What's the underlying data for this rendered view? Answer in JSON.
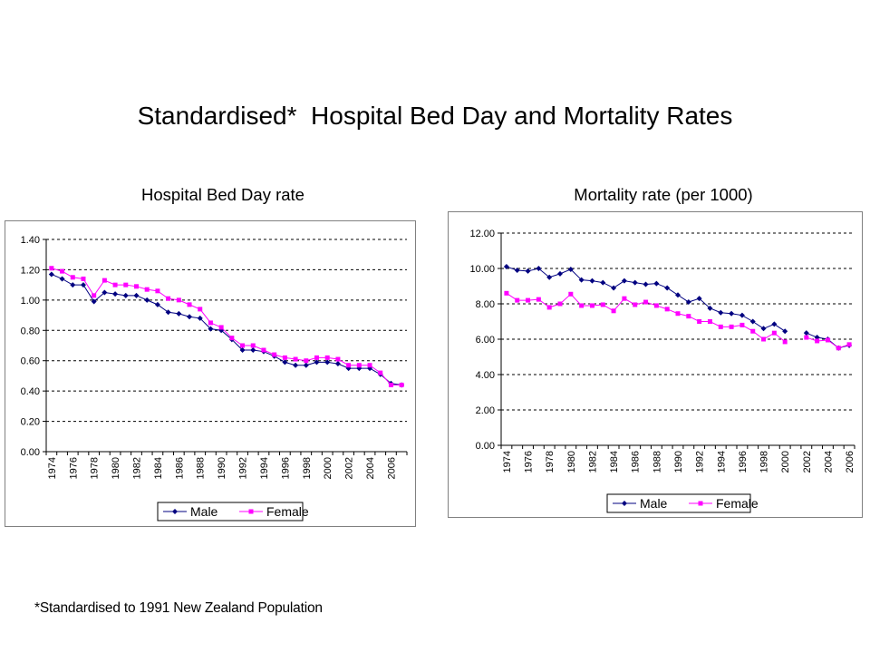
{
  "page": {
    "title": "Standardised*  Hospital Bed Day and Mortality Rates",
    "footnote": "*Standardised to 1991 New Zealand Population"
  },
  "chart_data": [
    {
      "type": "line",
      "heading": "Hospital Bed Day rate",
      "x": [
        1974,
        1975,
        1976,
        1977,
        1978,
        1979,
        1980,
        1981,
        1982,
        1983,
        1984,
        1985,
        1986,
        1987,
        1988,
        1989,
        1990,
        1991,
        1992,
        1993,
        1994,
        1995,
        1996,
        1997,
        1998,
        1999,
        2000,
        2001,
        2002,
        2003,
        2004,
        2005,
        2006,
        2007
      ],
      "x_tick_labels": [
        "1974",
        "1976",
        "1978",
        "1980",
        "1982",
        "1984",
        "1986",
        "1988",
        "1990",
        "1992",
        "1994",
        "1996",
        "1998",
        "2000",
        "2002",
        "2004",
        "2006"
      ],
      "y_tick_labels": [
        "0.00",
        "0.20",
        "0.40",
        "0.60",
        "0.80",
        "1.00",
        "1.20",
        "1.40"
      ],
      "ylim": [
        0,
        1.4
      ],
      "ytick_step": 0.2,
      "grid": "horizontal dashed",
      "legend_position": "bottom",
      "series": [
        {
          "name": "Male",
          "color": "#000080",
          "marker": "diamond",
          "values": [
            1.17,
            1.14,
            1.1,
            1.1,
            0.99,
            1.05,
            1.04,
            1.03,
            1.03,
            1.0,
            0.97,
            0.92,
            0.91,
            0.89,
            0.88,
            0.81,
            0.8,
            0.74,
            0.67,
            0.67,
            0.66,
            0.63,
            0.59,
            0.57,
            0.57,
            0.59,
            0.59,
            0.58,
            0.55,
            0.55,
            0.55,
            0.51,
            0.45,
            0.44
          ]
        },
        {
          "name": "Female",
          "color": "#FF00FF",
          "marker": "square",
          "values": [
            1.21,
            1.19,
            1.15,
            1.14,
            1.03,
            1.13,
            1.1,
            1.1,
            1.09,
            1.07,
            1.06,
            1.01,
            1.0,
            0.97,
            0.94,
            0.85,
            0.82,
            0.75,
            0.7,
            0.7,
            0.67,
            0.64,
            0.62,
            0.61,
            0.6,
            0.62,
            0.62,
            0.61,
            0.57,
            0.57,
            0.57,
            0.52,
            0.44,
            0.44
          ]
        }
      ]
    },
    {
      "type": "line",
      "heading": "Mortality rate (per 1000)",
      "x": [
        1974,
        1975,
        1976,
        1977,
        1978,
        1979,
        1980,
        1981,
        1982,
        1983,
        1984,
        1985,
        1986,
        1987,
        1988,
        1989,
        1990,
        1991,
        1992,
        1993,
        1994,
        1995,
        1996,
        1997,
        1998,
        1999,
        2000,
        2001,
        2002,
        2003,
        2004,
        2005,
        2006
      ],
      "x_tick_labels": [
        "1974",
        "1976",
        "1978",
        "1980",
        "1982",
        "1984",
        "1986",
        "1988",
        "1990",
        "1992",
        "1994",
        "1996",
        "1998",
        "2000",
        "2002",
        "2004",
        "2006"
      ],
      "y_tick_labels": [
        "0.00",
        "2.00",
        "4.00",
        "6.00",
        "8.00",
        "10.00",
        "12.00"
      ],
      "ylim": [
        0,
        12
      ],
      "ytick_step": 2,
      "grid": "horizontal dashed",
      "legend_position": "bottom",
      "series": [
        {
          "name": "Male",
          "color": "#000080",
          "marker": "diamond",
          "values": [
            10.1,
            9.9,
            9.85,
            10.0,
            9.5,
            9.7,
            9.95,
            9.35,
            9.3,
            9.2,
            8.9,
            9.3,
            9.2,
            9.1,
            9.15,
            8.9,
            8.5,
            8.1,
            8.3,
            7.75,
            7.5,
            7.45,
            7.35,
            7.0,
            6.6,
            6.85,
            6.45,
            null,
            6.35,
            6.1,
            6.0,
            5.5,
            5.65
          ]
        },
        {
          "name": "Female",
          "color": "#FF00FF",
          "marker": "square",
          "values": [
            8.6,
            8.2,
            8.2,
            8.25,
            7.8,
            8.0,
            8.55,
            7.9,
            7.9,
            7.95,
            7.6,
            8.3,
            7.95,
            8.1,
            7.9,
            7.7,
            7.45,
            7.3,
            7.0,
            7.0,
            6.7,
            6.7,
            6.8,
            6.45,
            6.0,
            6.35,
            5.85,
            null,
            6.1,
            5.9,
            5.95,
            5.5,
            5.7
          ]
        }
      ]
    }
  ]
}
